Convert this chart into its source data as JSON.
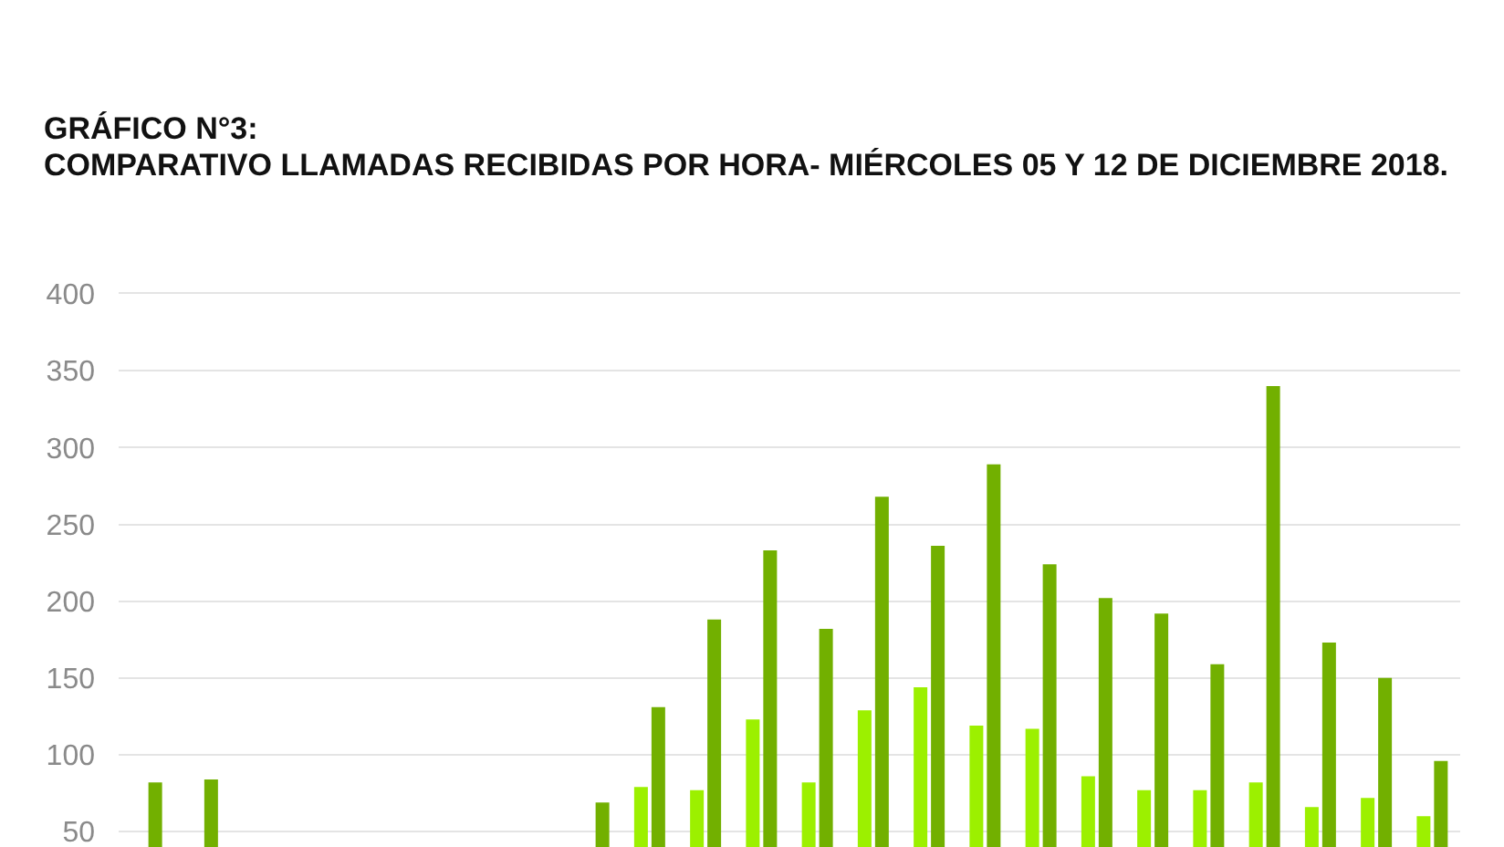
{
  "chart_data": {
    "type": "bar",
    "title": "GRÁFICO N°3:",
    "subtitle": "COMPARATIVO LLAMADAS RECIBIDAS POR HORA- MIÉRCOLES 05 Y 12 DE DICIEMBRE 2018.",
    "categories": [
      null,
      null,
      null,
      null,
      null,
      null,
      null,
      null,
      null,
      null,
      null,
      null,
      null,
      null,
      null,
      null,
      null,
      null,
      null,
      null,
      null,
      null,
      null,
      null
    ],
    "series": [
      {
        "color": "#9cf000",
        "values": [
          null,
          null,
          null,
          null,
          null,
          null,
          null,
          null,
          null,
          79,
          77,
          123,
          82,
          129,
          144,
          119,
          117,
          86,
          77,
          77,
          82,
          66,
          72,
          60
        ]
      },
      {
        "color": "#72b000",
        "values": [
          82,
          84,
          null,
          null,
          null,
          null,
          null,
          null,
          69,
          131,
          188,
          233,
          182,
          268,
          236,
          289,
          224,
          202,
          192,
          159,
          340,
          173,
          150,
          96
        ]
      }
    ],
    "ylim": [
      40,
      400
    ],
    "yticks": [
      50,
      100,
      150,
      200,
      250,
      300,
      350,
      400
    ],
    "grid": "y",
    "tick_labels": "y"
  }
}
